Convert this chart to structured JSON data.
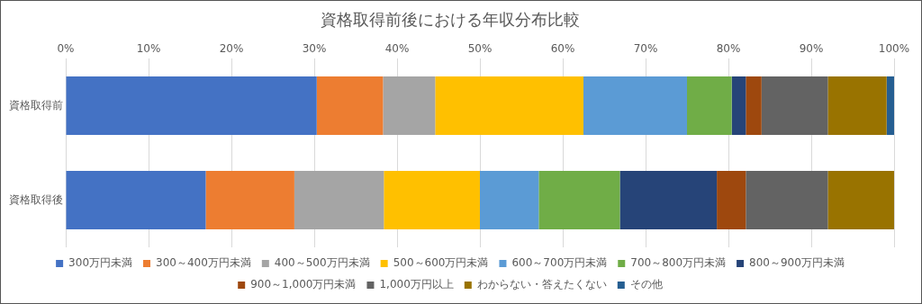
{
  "chart_data": {
    "type": "bar",
    "orientation": "horizontal",
    "stacked": true,
    "title": "資格取得前後における年収分布比較",
    "categories": [
      "資格取得前",
      "資格取得後"
    ],
    "series": [
      {
        "name": "300万円未満",
        "color": "#4472c4",
        "values": [
          30.3,
          16.9
        ]
      },
      {
        "name": "300～400万円未満",
        "color": "#ed7d31",
        "values": [
          8.0,
          10.7
        ]
      },
      {
        "name": "400～500万円未満",
        "color": "#a5a5a5",
        "values": [
          6.3,
          10.8
        ]
      },
      {
        "name": "500～600万円未満",
        "color": "#ffc000",
        "values": [
          17.9,
          11.6
        ]
      },
      {
        "name": "600～700万円未満",
        "color": "#5b9bd5",
        "values": [
          12.5,
          7.1
        ]
      },
      {
        "name": "700～800万円未満",
        "color": "#70ad47",
        "values": [
          5.4,
          9.8
        ]
      },
      {
        "name": "800～900万円未満",
        "color": "#264478",
        "values": [
          1.7,
          11.7
        ]
      },
      {
        "name": "900～1,000万円未満",
        "color": "#9e480e",
        "values": [
          1.9,
          3.5
        ]
      },
      {
        "name": "1,000万円以上",
        "color": "#636363",
        "values": [
          8.0,
          9.9
        ]
      },
      {
        "name": "わからない・答えたくない",
        "color": "#997300",
        "values": [
          7.1,
          8.0
        ]
      },
      {
        "name": "その他",
        "color": "#255e91",
        "values": [
          0.9,
          0
        ]
      }
    ],
    "xlim": [
      0,
      100
    ],
    "xticks": [
      {
        "value": 0,
        "label": "0%"
      },
      {
        "value": 10,
        "label": "10%"
      },
      {
        "value": 20,
        "label": "20%"
      },
      {
        "value": 30,
        "label": "30%"
      },
      {
        "value": 40,
        "label": "40%"
      },
      {
        "value": 50,
        "label": "50%"
      },
      {
        "value": 60,
        "label": "60%"
      },
      {
        "value": 70,
        "label": "70%"
      },
      {
        "value": 80,
        "label": "80%"
      },
      {
        "value": 90,
        "label": "90%"
      },
      {
        "value": 100,
        "label": "100%"
      }
    ],
    "grid": "x",
    "legend": "bottom"
  }
}
